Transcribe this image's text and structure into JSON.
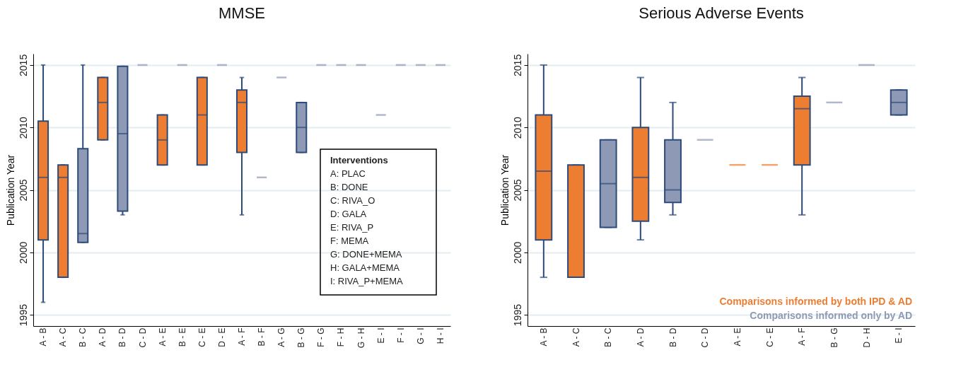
{
  "chart_data": [
    {
      "type": "box",
      "title": "MMSE",
      "ylabel": "Publication Year",
      "categories": [
        "A - B",
        "A - C",
        "B - C",
        "A - D",
        "B - D",
        "C - D",
        "A - E",
        "B - E",
        "C - E",
        "D - E",
        "A - F",
        "B - F",
        "A - G",
        "B - G",
        "F - G",
        "F - H",
        "G - H",
        "E - I",
        "F - I",
        "G - I",
        "H - I"
      ],
      "series": [
        {
          "color": "#ed7d31",
          "boxes": [
            {
              "low": 1996,
              "q1": 2001,
              "median": 2006,
              "q3": 2010.5,
              "high": 2015
            },
            {
              "low": 1998,
              "q1": 1998,
              "median": 2006,
              "q3": 2007,
              "high": 2007
            },
            null,
            {
              "low": 2009,
              "q1": 2009,
              "median": 2012,
              "q3": 2014,
              "high": 2014
            },
            null,
            null,
            {
              "low": 2007,
              "q1": 2007,
              "median": 2009,
              "q3": 2011,
              "high": 2011
            },
            null,
            {
              "low": 2007,
              "q1": 2007,
              "median": 2011,
              "q3": 2014,
              "high": 2014
            },
            null,
            {
              "low": 2003,
              "q1": 2008,
              "median": 2012,
              "q3": 2013,
              "high": 2014
            },
            null,
            null,
            null,
            null,
            null,
            null,
            null,
            null,
            null,
            null
          ]
        },
        {
          "color": "#8e9ab5",
          "boxes": [
            null,
            null,
            {
              "low": 2000.8,
              "q1": 2000.8,
              "median": 2001.5,
              "q3": 2008.3,
              "high": 2015
            },
            null,
            {
              "low": 2003,
              "q1": 2003.3,
              "median": 2009.5,
              "q3": 2014.9,
              "high": 2014.9
            },
            {
              "low": 2015,
              "q1": 2015,
              "median": 2015,
              "q3": 2015,
              "high": 2015
            },
            null,
            {
              "low": 2015,
              "q1": 2015,
              "median": 2015,
              "q3": 2015,
              "high": 2015
            },
            null,
            {
              "low": 2015,
              "q1": 2015,
              "median": 2015,
              "q3": 2015,
              "high": 2015
            },
            null,
            {
              "low": 2006,
              "q1": 2006,
              "median": 2006,
              "q3": 2006,
              "high": 2006
            },
            {
              "low": 2014,
              "q1": 2014,
              "median": 2014,
              "q3": 2014,
              "high": 2014
            },
            {
              "low": 2008,
              "q1": 2008,
              "median": 2010,
              "q3": 2012,
              "high": 2012
            },
            {
              "low": 2015,
              "q1": 2015,
              "median": 2015,
              "q3": 2015,
              "high": 2015
            },
            {
              "low": 2015,
              "q1": 2015,
              "median": 2015,
              "q3": 2015,
              "high": 2015
            },
            {
              "low": 2015,
              "q1": 2015,
              "median": 2015,
              "q3": 2015,
              "high": 2015
            },
            {
              "low": 2011,
              "q1": 2011,
              "median": 2011,
              "q3": 2011,
              "high": 2011
            },
            {
              "low": 2015,
              "q1": 2015,
              "median": 2015,
              "q3": 2015,
              "high": 2015
            },
            {
              "low": 2015,
              "q1": 2015,
              "median": 2015,
              "q3": 2015,
              "high": 2015
            },
            {
              "low": 2015,
              "q1": 2015,
              "median": 2015,
              "q3": 2015,
              "high": 2015
            }
          ]
        }
      ],
      "ylim": [
        1994.1,
        2015.9
      ],
      "yticks": [
        1995,
        2000,
        2005,
        2010,
        2015
      ],
      "grid": "y",
      "legend": false,
      "annotations": [
        "Interventions",
        "A: PLAC",
        "B: DONE",
        "C: RIVA_O",
        "D: GALA",
        "E: RIVA_P",
        "F: MEMA",
        "G: DONE+MEMA",
        "H: GALA+MEMA",
        "I: RIVA_P+MEMA"
      ]
    },
    {
      "type": "box",
      "title": "Serious Adverse Events",
      "ylabel": "Publication Year",
      "categories": [
        "A - B",
        "A - C",
        "B - C",
        "A - D",
        "B - D",
        "C - D",
        "A - E",
        "C - E",
        "A - F",
        "B - G",
        "D - H",
        "E - I"
      ],
      "series": [
        {
          "name": "Comparisons informed by both IPD & AD",
          "color": "#ed7d31",
          "boxes": [
            {
              "low": 1998,
              "q1": 2001,
              "median": 2006.5,
              "q3": 2011,
              "high": 2015
            },
            {
              "low": 1998,
              "q1": 1998,
              "median": 1998,
              "q3": 2007,
              "high": 2007
            },
            null,
            {
              "low": 2001,
              "q1": 2002.5,
              "median": 2006,
              "q3": 2010,
              "high": 2014
            },
            null,
            null,
            {
              "low": 2007,
              "q1": 2007,
              "median": 2007,
              "q3": 2007,
              "high": 2007
            },
            {
              "low": 2007,
              "q1": 2007,
              "median": 2007,
              "q3": 2007,
              "high": 2007
            },
            {
              "low": 2003,
              "q1": 2007,
              "median": 2011.5,
              "q3": 2012.5,
              "high": 2014
            },
            null,
            null,
            null
          ]
        },
        {
          "name": "Comparisons informed only by AD",
          "color": "#8e9ab5",
          "boxes": [
            null,
            null,
            {
              "low": 2002,
              "q1": 2002,
              "median": 2005.5,
              "q3": 2009,
              "high": 2009
            },
            null,
            {
              "low": 2003,
              "q1": 2004,
              "median": 2005,
              "q3": 2009,
              "high": 2012
            },
            {
              "low": 2009,
              "q1": 2009,
              "median": 2009,
              "q3": 2009,
              "high": 2009
            },
            null,
            null,
            null,
            {
              "low": 2012,
              "q1": 2012,
              "median": 2012,
              "q3": 2012,
              "high": 2012
            },
            {
              "low": 2015,
              "q1": 2015,
              "median": 2015,
              "q3": 2015,
              "high": 2015
            },
            {
              "low": 2011,
              "q1": 2011,
              "median": 2012,
              "q3": 2013,
              "high": 2013
            }
          ]
        }
      ],
      "ylim": [
        1994.1,
        2015.9
      ],
      "yticks": [
        1995,
        2000,
        2005,
        2010,
        2015
      ],
      "grid": "y",
      "legend": "bottom right"
    }
  ]
}
